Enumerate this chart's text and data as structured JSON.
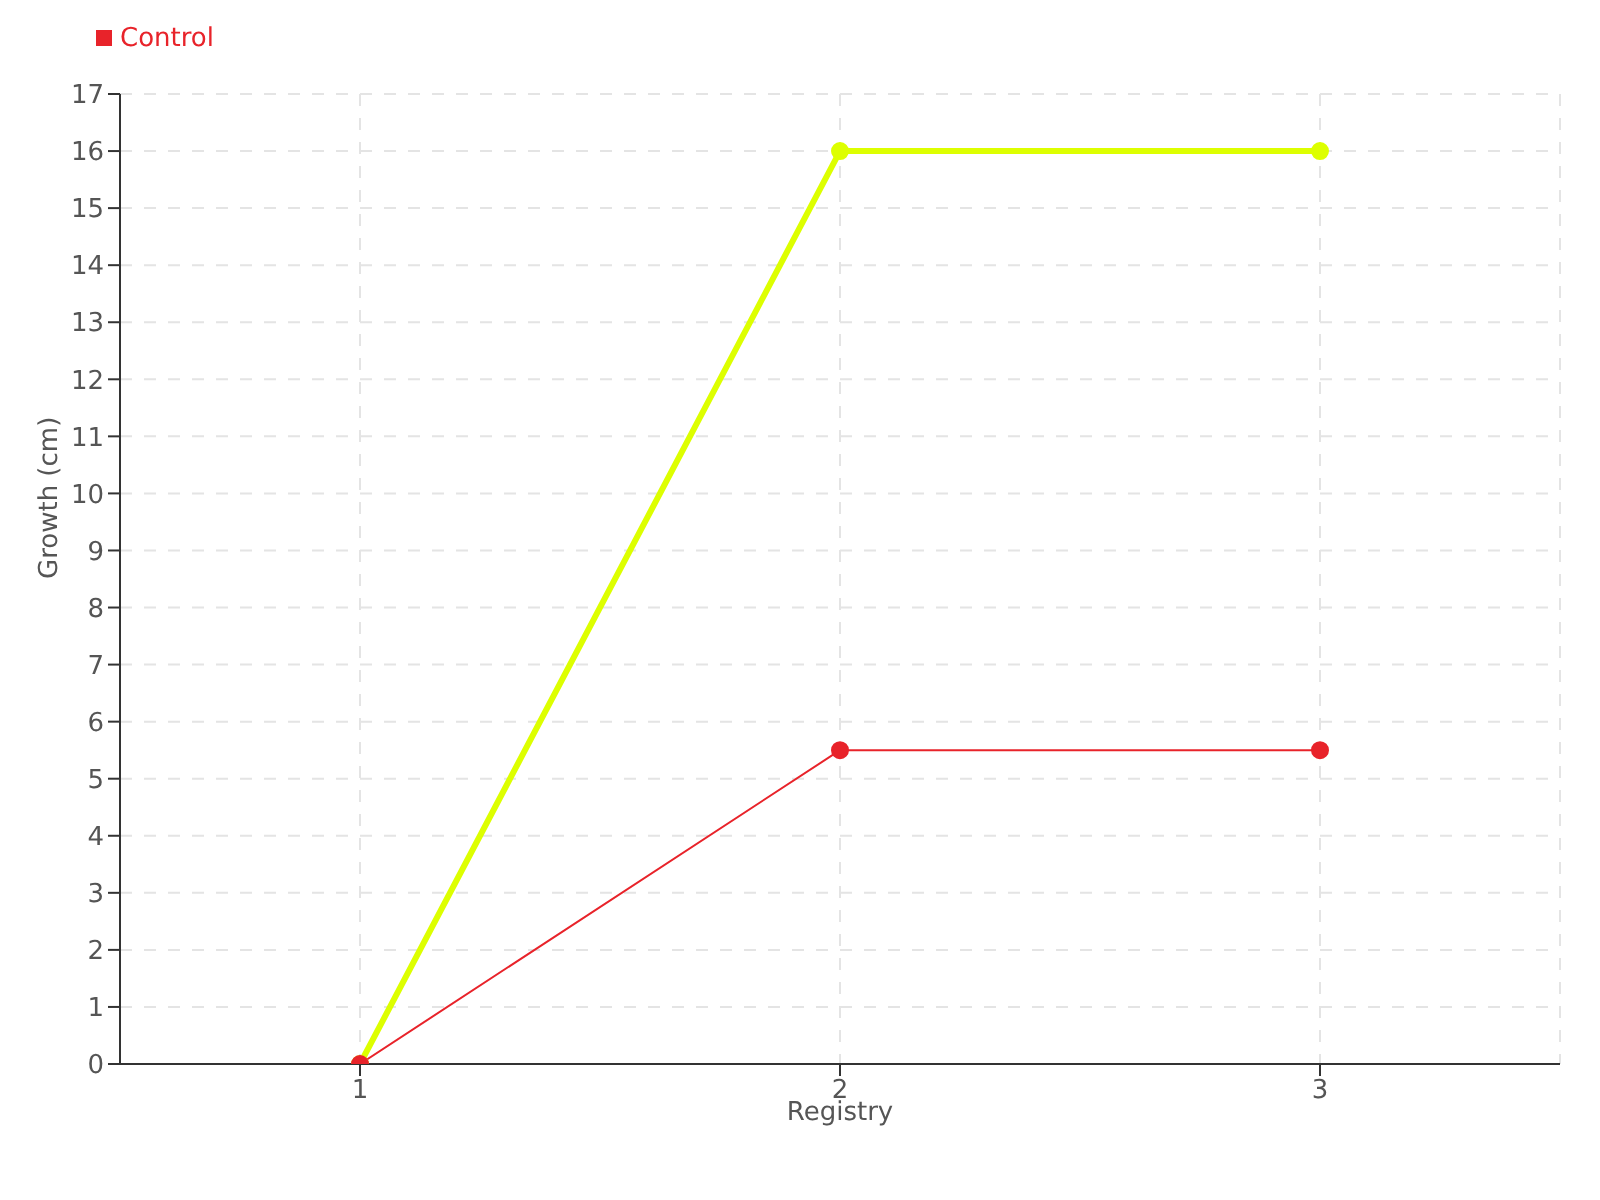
{
  "chart_data": {
    "type": "line",
    "xlabel": "Registry",
    "ylabel": "Growth (cm)",
    "x": [
      1,
      2,
      3
    ],
    "series": [
      {
        "color": "#ddff00",
        "values": [
          0,
          16,
          16
        ]
      },
      {
        "name": "Control",
        "color": "#e8232a",
        "values": [
          0,
          5.5,
          5.5
        ]
      }
    ],
    "xlim": [
      0.5,
      3.5
    ],
    "xticks": [
      1,
      2,
      3
    ],
    "ylim": [
      0,
      17
    ],
    "yticks": [
      0,
      1,
      2,
      3,
      4,
      5,
      6,
      7,
      8,
      9,
      10,
      11,
      12,
      13,
      14,
      15,
      16,
      17
    ],
    "grid": true,
    "legend": "top left",
    "marker": "circle",
    "line_style": "solid"
  }
}
